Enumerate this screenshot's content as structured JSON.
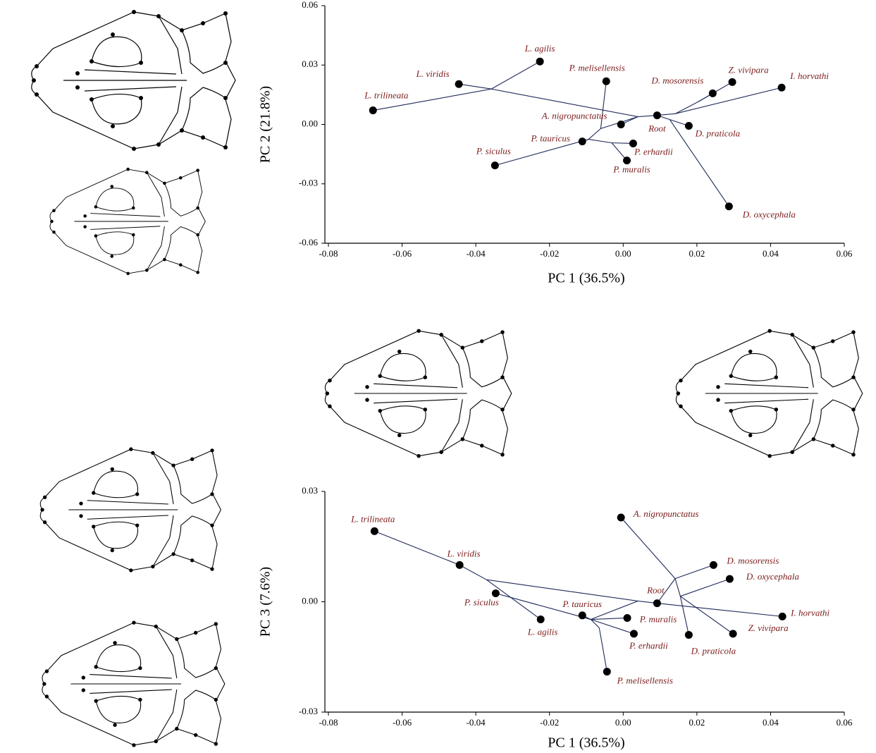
{
  "chart_data": [
    {
      "type": "scatter",
      "x_label": "PC 1 (36.5%)",
      "y_label": "PC 2 (21.8%)",
      "xlim": [
        -0.08,
        0.06
      ],
      "ylim": [
        -0.06,
        0.06
      ],
      "xticks": [
        -0.08,
        -0.06,
        -0.04,
        -0.02,
        {
          "value": 0,
          "label": "0.00"
        },
        0.02,
        0.04,
        0.06
      ],
      "yticks": [
        -0.06,
        -0.03,
        {
          "value": 0,
          "label": "0.00"
        },
        0.03,
        0.06
      ],
      "color": "#000000",
      "label_color": "#7b1a1a",
      "edge_color": "#1f2a5a",
      "labels": [
        "L. trilineata",
        "L. viridis",
        "L. agilis",
        "P. siculus",
        "P. tauricus",
        "P. melisellensis",
        "P. muralis",
        "P. erhardii",
        "A. nigropunctatus",
        "Root",
        "D. mosorensis",
        "Z. vivipara",
        "I. horvathi",
        "D. praticola",
        "D. oxycephala"
      ],
      "x": [
        -0.0679,
        -0.0446,
        -0.0226,
        -0.0348,
        -0.0111,
        -0.0046,
        0.001,
        0.0027,
        -0.0006,
        0.0092,
        0.0243,
        0.0296,
        0.043,
        0.0178,
        0.0287
      ],
      "values": [
        0.0071,
        0.0204,
        0.0318,
        -0.0207,
        -0.0086,
        0.0218,
        -0.0182,
        -0.0096,
        0.0,
        0.0046,
        0.0157,
        0.0214,
        0.0186,
        -0.0007,
        -0.0414
      ],
      "edges": [
        [
          -0.0679,
          0.0071,
          -0.0358,
          0.0179
        ],
        [
          -0.0226,
          0.0318,
          -0.0358,
          0.0179
        ],
        [
          -0.0446,
          0.0204,
          -0.0358,
          0.0179
        ],
        [
          -0.0358,
          0.0179,
          0.004,
          0.0039
        ],
        [
          0.004,
          0.0039,
          0.0092,
          0.0046
        ],
        [
          0.004,
          0.0039,
          -0.0006,
          0.0
        ],
        [
          0.004,
          0.0039,
          -0.0061,
          -0.0021
        ],
        [
          -0.0061,
          -0.0021,
          -0.0046,
          0.0218
        ],
        [
          -0.0061,
          -0.0021,
          -0.0094,
          -0.0075
        ],
        [
          -0.0094,
          -0.0075,
          -0.0111,
          -0.0086
        ],
        [
          -0.0094,
          -0.0075,
          -0.0348,
          -0.0207
        ],
        [
          -0.0094,
          -0.0075,
          -0.0031,
          -0.0093
        ],
        [
          -0.0031,
          -0.0093,
          0.0027,
          -0.0096
        ],
        [
          -0.0031,
          -0.0093,
          0.001,
          -0.0182
        ],
        [
          0.0092,
          0.0046,
          0.0141,
          0.0054
        ],
        [
          0.0141,
          0.0054,
          0.0203,
          0.0114
        ],
        [
          0.0203,
          0.0114,
          0.0243,
          0.0157
        ],
        [
          0.0203,
          0.0114,
          0.0296,
          0.0214
        ],
        [
          0.0141,
          0.0054,
          0.043,
          0.0186
        ],
        [
          0.0092,
          0.0046,
          0.0126,
          0.0025
        ],
        [
          0.0126,
          0.0025,
          0.0178,
          -0.0007
        ],
        [
          0.0126,
          0.0025,
          0.0287,
          -0.0414
        ]
      ]
    },
    {
      "type": "scatter",
      "x_label": "PC 1 (36.5%)",
      "y_label": "PC 3 (7.6%)",
      "xlim": [
        -0.08,
        0.06
      ],
      "ylim": [
        -0.03,
        0.03
      ],
      "xticks": [
        -0.08,
        -0.06,
        -0.04,
        -0.02,
        {
          "value": 0,
          "label": "0.00"
        },
        0.02,
        0.04,
        0.06
      ],
      "yticks": [
        -0.03,
        {
          "value": 0,
          "label": "0.00"
        },
        0.03
      ],
      "color": "#000000",
      "label_color": "#7b1a1a",
      "edge_color": "#1f2a5a",
      "labels": [
        "L. trilineata",
        "L. viridis",
        "L. agilis",
        "P. siculus",
        "P. tauricus",
        "P. melisellensis",
        "P. muralis",
        "P. erhardii",
        "A. nigropunctatus",
        "Root",
        "D. mosorensis",
        "Z. vivipara",
        "I. horvathi",
        "D. praticola",
        "D. oxycephala"
      ],
      "x": [
        -0.0675,
        -0.0444,
        -0.0224,
        -0.0346,
        -0.0111,
        -0.0044,
        0.0011,
        0.0029,
        -0.0006,
        0.0092,
        0.0245,
        0.0298,
        0.0432,
        0.0178,
        0.0289
      ],
      "values": [
        0.0192,
        0.01,
        -0.0048,
        0.0023,
        -0.0037,
        -0.019,
        -0.0044,
        -0.0087,
        0.0229,
        -0.0004,
        0.01,
        -0.0087,
        -0.004,
        -0.009,
        0.0062
      ],
      "edges": [
        [
          -0.0675,
          0.0192,
          -0.0444,
          0.01
        ],
        [
          -0.0444,
          0.01,
          -0.0371,
          0.006
        ],
        [
          -0.0371,
          0.006,
          -0.0224,
          -0.0048
        ],
        [
          -0.0371,
          0.006,
          0.004,
          0.0002
        ],
        [
          -0.0346,
          0.0023,
          -0.0088,
          -0.0048
        ],
        [
          0.004,
          0.0002,
          0.0092,
          -0.0004
        ],
        [
          0.004,
          0.0002,
          -0.0088,
          -0.0048
        ],
        [
          -0.0088,
          -0.0048,
          -0.0111,
          -0.0037
        ],
        [
          -0.0088,
          -0.0048,
          0.0011,
          -0.0044
        ],
        [
          -0.0088,
          -0.0048,
          0.0029,
          -0.0087
        ],
        [
          -0.0088,
          -0.0048,
          -0.0065,
          -0.0071
        ],
        [
          -0.0065,
          -0.0071,
          -0.0044,
          -0.019
        ],
        [
          0.0092,
          -0.0004,
          0.0141,
          0.0063
        ],
        [
          0.0141,
          0.0063,
          -0.0006,
          0.0229
        ],
        [
          0.0141,
          0.0063,
          0.0245,
          0.01
        ],
        [
          0.0141,
          0.0063,
          0.0155,
          0.0015
        ],
        [
          0.0155,
          0.0015,
          0.0289,
          0.0062
        ],
        [
          0.0155,
          0.0015,
          0.0178,
          -0.009
        ],
        [
          0.0155,
          0.0015,
          0.0298,
          -0.0087
        ],
        [
          0.0092,
          -0.0004,
          0.0432,
          -0.004
        ]
      ]
    }
  ]
}
